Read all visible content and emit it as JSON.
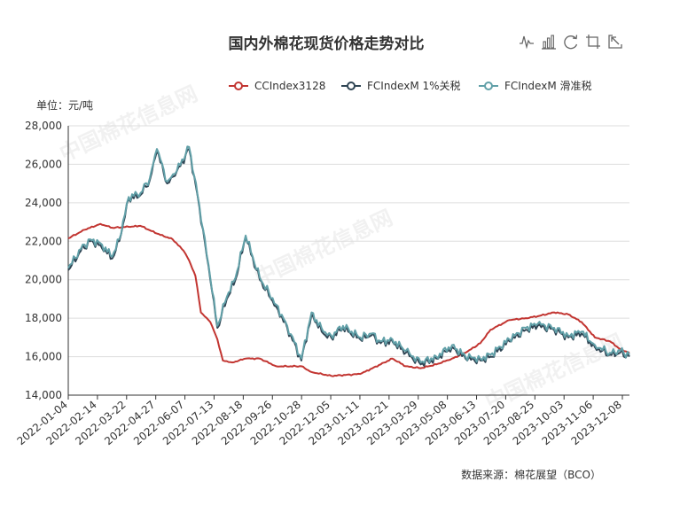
{
  "chart_title": "国内外棉花现货价格走势对比",
  "unit_label": "单位：元/吨",
  "source_label": "数据来源：棉花展望（BCO）",
  "watermark_text": "中国棉花信息网",
  "toolbox": {
    "icons": [
      "line-chart-icon",
      "bar-chart-icon",
      "restore-icon",
      "data-view-icon",
      "save-image-icon"
    ]
  },
  "colors": {
    "cc": "#c23531",
    "fc1": "#2f4554",
    "fcs": "#61a0a8",
    "grid": "#dddddd",
    "axis": "#333333"
  },
  "chart_data": {
    "type": "line",
    "title": "国内外棉花现货价格走势对比",
    "ylabel": "单位：元/吨",
    "ylim": [
      14000,
      28000
    ],
    "yticks": [
      "14,000",
      "16,000",
      "18,000",
      "20,000",
      "22,000",
      "24,000",
      "26,000",
      "28,000"
    ],
    "xticks": [
      "2022-01-04",
      "2022-02-14",
      "2022-03-22",
      "2022-04-27",
      "2022-06-07",
      "2022-07-13",
      "2022-08-18",
      "2022-09-26",
      "2022-10-28",
      "2022-12-05",
      "2023-01-11",
      "2023-02-21",
      "2023-03-29",
      "2023-05-08",
      "2023-06-13",
      "2023-07-20",
      "2023-08-25",
      "2023-10-03",
      "2023-11-06",
      "2023-12-08"
    ],
    "legend_position": "top-right",
    "grid": true,
    "series": [
      {
        "name": "CCIndex3128",
        "values": [
          [
            "2022-01-04",
            22150
          ],
          [
            "2022-01-25",
            22600
          ],
          [
            "2022-02-14",
            22900
          ],
          [
            "2022-03-01",
            22700
          ],
          [
            "2022-03-22",
            22750
          ],
          [
            "2022-04-06",
            22800
          ],
          [
            "2022-04-27",
            22400
          ],
          [
            "2022-05-17",
            22100
          ],
          [
            "2022-05-31",
            21500
          ],
          [
            "2022-06-07",
            21000
          ],
          [
            "2022-06-15",
            20200
          ],
          [
            "2022-06-22",
            18300
          ],
          [
            "2022-07-04",
            17800
          ],
          [
            "2022-07-13",
            16900
          ],
          [
            "2022-07-20",
            15800
          ],
          [
            "2022-08-01",
            15700
          ],
          [
            "2022-08-18",
            15900
          ],
          [
            "2022-09-05",
            15900
          ],
          [
            "2022-09-26",
            15500
          ],
          [
            "2022-10-28",
            15500
          ],
          [
            "2022-11-10",
            15200
          ],
          [
            "2022-12-05",
            15000
          ],
          [
            "2023-01-11",
            15100
          ],
          [
            "2023-02-06",
            15600
          ],
          [
            "2023-02-21",
            15900
          ],
          [
            "2023-03-10",
            15500
          ],
          [
            "2023-03-29",
            15400
          ],
          [
            "2023-04-18",
            15600
          ],
          [
            "2023-05-08",
            15900
          ],
          [
            "2023-05-25",
            16200
          ],
          [
            "2023-06-13",
            16700
          ],
          [
            "2023-06-26",
            17400
          ],
          [
            "2023-07-20",
            17900
          ],
          [
            "2023-08-10",
            18000
          ],
          [
            "2023-08-25",
            18100
          ],
          [
            "2023-09-15",
            18300
          ],
          [
            "2023-10-03",
            18200
          ],
          [
            "2023-10-20",
            17800
          ],
          [
            "2023-11-06",
            17000
          ],
          [
            "2023-11-25",
            16800
          ],
          [
            "2023-12-08",
            16400
          ],
          [
            "2023-12-20",
            16200
          ]
        ]
      },
      {
        "name": "FCIndexM 1%关税",
        "values": [
          [
            "2022-01-04",
            20500
          ],
          [
            "2022-01-20",
            21500
          ],
          [
            "2022-02-01",
            22000
          ],
          [
            "2022-02-14",
            21800
          ],
          [
            "2022-03-01",
            21100
          ],
          [
            "2022-03-10",
            22000
          ],
          [
            "2022-03-22",
            24200
          ],
          [
            "2022-04-06",
            24400
          ],
          [
            "2022-04-18",
            25200
          ],
          [
            "2022-04-27",
            26700
          ],
          [
            "2022-05-10",
            25000
          ],
          [
            "2022-05-20",
            25400
          ],
          [
            "2022-06-07",
            26800
          ],
          [
            "2022-06-20",
            23800
          ],
          [
            "2022-07-04",
            20000
          ],
          [
            "2022-07-13",
            17500
          ],
          [
            "2022-07-25",
            19000
          ],
          [
            "2022-08-05",
            20000
          ],
          [
            "2022-08-18",
            22200
          ],
          [
            "2022-09-05",
            20000
          ],
          [
            "2022-09-26",
            18600
          ],
          [
            "2022-10-10",
            17500
          ],
          [
            "2022-10-28",
            15800
          ],
          [
            "2022-11-10",
            18200
          ],
          [
            "2022-11-25",
            17200
          ],
          [
            "2022-12-05",
            17000
          ],
          [
            "2022-12-20",
            17500
          ],
          [
            "2023-01-11",
            16900
          ],
          [
            "2023-01-25",
            17100
          ],
          [
            "2023-02-06",
            16700
          ],
          [
            "2023-02-21",
            16800
          ],
          [
            "2023-03-10",
            16200
          ],
          [
            "2023-03-29",
            15600
          ],
          [
            "2023-04-18",
            15900
          ],
          [
            "2023-05-08",
            16500
          ],
          [
            "2023-05-25",
            15900
          ],
          [
            "2023-06-13",
            15800
          ],
          [
            "2023-06-26",
            16000
          ],
          [
            "2023-07-20",
            16800
          ],
          [
            "2023-08-10",
            17400
          ],
          [
            "2023-08-25",
            17600
          ],
          [
            "2023-09-15",
            17400
          ],
          [
            "2023-10-03",
            17000
          ],
          [
            "2023-10-20",
            17200
          ],
          [
            "2023-11-06",
            16500
          ],
          [
            "2023-11-25",
            16100
          ],
          [
            "2023-12-08",
            16200
          ],
          [
            "2023-12-20",
            16000
          ]
        ]
      },
      {
        "name": "FCIndexM 滑准税",
        "values": [
          [
            "2022-01-04",
            20600
          ],
          [
            "2022-01-20",
            21600
          ],
          [
            "2022-02-01",
            22100
          ],
          [
            "2022-02-14",
            21900
          ],
          [
            "2022-03-01",
            21200
          ],
          [
            "2022-03-10",
            22100
          ],
          [
            "2022-03-22",
            24300
          ],
          [
            "2022-04-06",
            24500
          ],
          [
            "2022-04-18",
            25300
          ],
          [
            "2022-04-27",
            26800
          ],
          [
            "2022-05-10",
            25100
          ],
          [
            "2022-05-20",
            25500
          ],
          [
            "2022-06-07",
            26900
          ],
          [
            "2022-06-20",
            23900
          ],
          [
            "2022-07-04",
            20100
          ],
          [
            "2022-07-13",
            17600
          ],
          [
            "2022-07-25",
            19100
          ],
          [
            "2022-08-05",
            20100
          ],
          [
            "2022-08-18",
            22300
          ],
          [
            "2022-09-05",
            20100
          ],
          [
            "2022-09-26",
            18700
          ],
          [
            "2022-10-10",
            17600
          ],
          [
            "2022-10-28",
            15900
          ],
          [
            "2022-11-10",
            18300
          ],
          [
            "2022-11-25",
            17300
          ],
          [
            "2022-12-05",
            17100
          ],
          [
            "2022-12-20",
            17600
          ],
          [
            "2023-01-11",
            17000
          ],
          [
            "2023-01-25",
            17200
          ],
          [
            "2023-02-06",
            16800
          ],
          [
            "2023-02-21",
            16900
          ],
          [
            "2023-03-10",
            16300
          ],
          [
            "2023-03-29",
            15700
          ],
          [
            "2023-04-18",
            16000
          ],
          [
            "2023-05-08",
            16600
          ],
          [
            "2023-05-25",
            16000
          ],
          [
            "2023-06-13",
            15900
          ],
          [
            "2023-06-26",
            16100
          ],
          [
            "2023-07-20",
            16900
          ],
          [
            "2023-08-10",
            17500
          ],
          [
            "2023-08-25",
            17700
          ],
          [
            "2023-09-15",
            17500
          ],
          [
            "2023-10-03",
            17100
          ],
          [
            "2023-10-20",
            17300
          ],
          [
            "2023-11-06",
            16600
          ],
          [
            "2023-11-25",
            16200
          ],
          [
            "2023-12-08",
            16300
          ],
          [
            "2023-12-20",
            16100
          ]
        ]
      }
    ]
  }
}
